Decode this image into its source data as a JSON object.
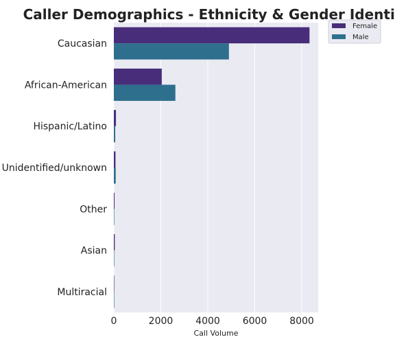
{
  "chart_data": {
    "type": "bar",
    "orientation": "horizontal",
    "title": "Caller Demographics - Ethnicity & Gender Identity",
    "xlabel": "Call Volume",
    "ylabel": "",
    "categories": [
      "Caucasian",
      "African-American",
      "Hispanic/Latino",
      "Unidentified/unknown",
      "Other",
      "Asian",
      "Multiracial"
    ],
    "series": [
      {
        "name": "Female",
        "color": "#482d7a",
        "values": [
          8330,
          2040,
          90,
          70,
          30,
          40,
          10
        ]
      },
      {
        "name": "Male",
        "color": "#2f6f8e",
        "values": [
          4900,
          2620,
          60,
          80,
          10,
          10,
          5
        ]
      }
    ],
    "xlim": [
      0,
      8700
    ],
    "xticks": [
      0,
      2000,
      4000,
      6000,
      8000
    ],
    "grid": true,
    "legend_position": "top-right-outside",
    "plot_background": "#eaeaf2",
    "grid_color": "#ffffff"
  }
}
